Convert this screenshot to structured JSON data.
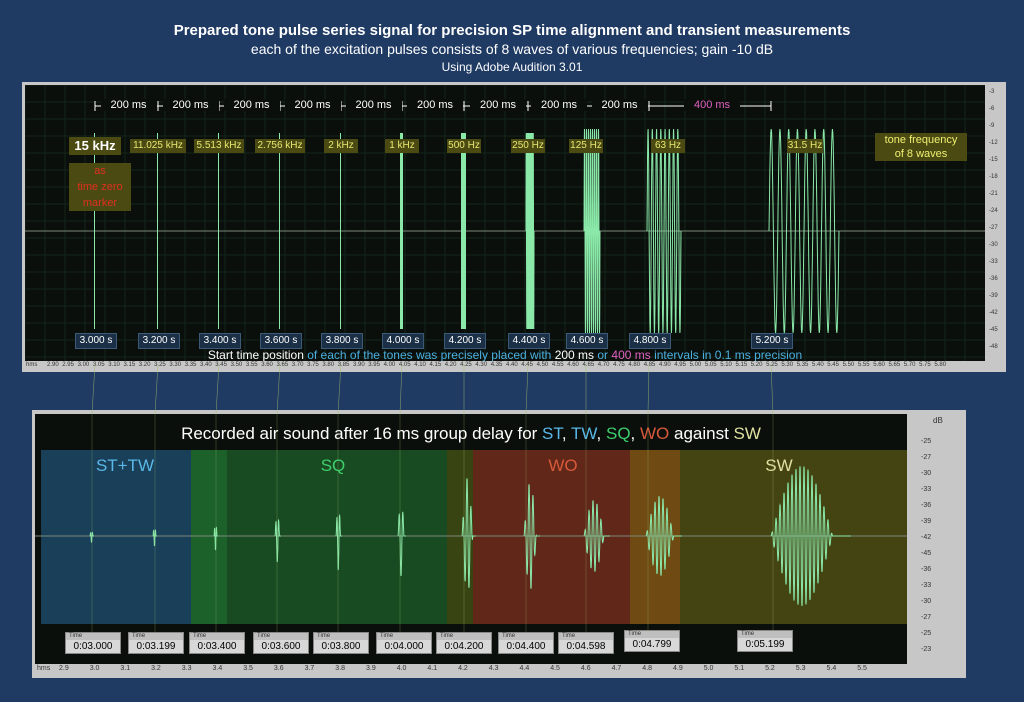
{
  "header": {
    "title": "Prepared tone pulse series signal for precision SP time alignment and transient measurements",
    "subtitle": "each of the excitation  pulses consists of 8 waves of various frequencies; gain -10 dB",
    "software": "Using Adobe Audition 3.01"
  },
  "top_panel": {
    "intervals": [
      "200 ms",
      "200 ms",
      "200 ms",
      "200 ms",
      "200 ms",
      "200 ms",
      "200 ms",
      "200 ms",
      "200 ms",
      "400 ms"
    ],
    "frequencies": [
      "15 kHz",
      "11.025 kHz",
      "5.513 kHz",
      "2.756 kHz",
      "2 kHz",
      "1 kHz",
      "500 Hz",
      "250 Hz",
      "125 Hz",
      "63 Hz",
      "31.5 Hz"
    ],
    "marker_note": "as\ntime zero\nmarker",
    "legend_note": "tone frequency\nof 8 waves",
    "start_times": [
      "3.000 s",
      "3.200 s",
      "3.400 s",
      "3.600 s",
      "3.800 s",
      "4.000 s",
      "4.200 s",
      "4.400 s",
      "4.600 s",
      "4.800 s",
      "5.200 s"
    ],
    "footer": {
      "a": "Start time position ",
      "b": "of each of the tones was precisely placed with ",
      "c": "200 ms",
      "d": " or ",
      "e": "400 ms",
      "f": " intervals in 0.1 ms precision"
    },
    "ruler_unit": "hms",
    "ruler_ticks": [
      "2.90",
      "2.95",
      "3.00",
      "3.05",
      "3.10",
      "3.15",
      "3.20",
      "3.25",
      "3.30",
      "3.35",
      "3.40",
      "3.45",
      "3.50",
      "3.55",
      "3.60",
      "3.65",
      "3.70",
      "3.75",
      "3.80",
      "3.85",
      "3.90",
      "3.95",
      "4.00",
      "4.05",
      "4.10",
      "4.15",
      "4.20",
      "4.25",
      "4.30",
      "4.35",
      "4.40",
      "4.45",
      "4.50",
      "4.55",
      "4.60",
      "4.65",
      "4.70",
      "4.75",
      "4.80",
      "4.85",
      "4.90",
      "4.95",
      "5.00",
      "5.05",
      "5.10",
      "5.15",
      "5.20",
      "5.25",
      "5.30",
      "5.35",
      "5.40",
      "5.45",
      "5.50",
      "5.55",
      "5.60",
      "5.65",
      "5.70",
      "5.75",
      "5.80"
    ],
    "scale_ticks": [
      "-3",
      "-6",
      "-9",
      "-12",
      "-15",
      "-18",
      "-21",
      "-24",
      "-27",
      "-30",
      "-33",
      "-36",
      "-39",
      "-42",
      "-45",
      "-48"
    ]
  },
  "bottom_panel": {
    "title": {
      "prefix": "Recorded air sound after 16 ms group delay for ",
      "st": "ST",
      "sep1": ", ",
      "tw": "TW",
      "sep2": ", ",
      "sq": "SQ",
      "sep3": ", ",
      "wo": "WO",
      "suffix": "  against ",
      "sw": "SW"
    },
    "groups": [
      {
        "label": "ST+TW",
        "color": "#1e4a6e",
        "text_color": "#5ab8e8"
      },
      {
        "label": "SQ",
        "color": "#1f5c2a",
        "text_color": "#3ecf6c"
      },
      {
        "label": "WO",
        "color": "#6a2a1a",
        "text_color": "#d85a3a"
      },
      {
        "label": "SW",
        "color": "#4a4a14",
        "text_color": "#e0e0a0"
      }
    ],
    "time_header": "Time",
    "times": [
      "0:03.000",
      "0:03.199",
      "0:03.400",
      "0:03.600",
      "0:03.800",
      "0:04.000",
      "0:04.200",
      "0:04.400",
      "0:04.598",
      "0:04.799",
      "0:05.199"
    ],
    "ruler_unit": "hms",
    "ruler_ticks": [
      "2.9",
      "3.0",
      "3.1",
      "3.2",
      "3.3",
      "3.4",
      "3.5",
      "3.6",
      "3.7",
      "3.8",
      "3.9",
      "4.0",
      "4.1",
      "4.2",
      "4.3",
      "4.4",
      "4.5",
      "4.6",
      "4.7",
      "4.8",
      "4.9",
      "5.0",
      "5.1",
      "5.2",
      "5.3",
      "5.4",
      "5.5"
    ],
    "scale_unit": "dB",
    "scale_ticks": [
      "-25",
      "-27",
      "-30",
      "-33",
      "-36",
      "-39",
      "-42",
      "-45",
      "-36",
      "-33",
      "-30",
      "-27",
      "-25",
      "-23"
    ]
  }
}
